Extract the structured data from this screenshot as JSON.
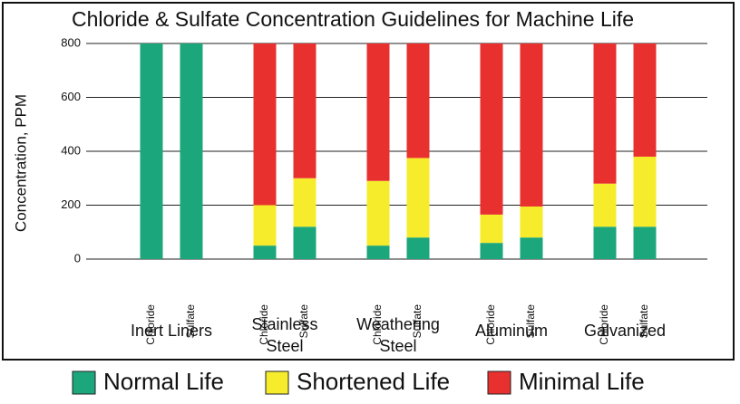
{
  "chart_data": {
    "type": "stacked_bar",
    "title": "Chloride & Sulfate Concentration Guidelines for Machine Life",
    "y_label": "Concentration, PPM",
    "categories": [
      "Chloride",
      "Sulfate",
      "Chloride",
      "Sulfate",
      "Chloride",
      "Sulfate",
      "Chloride",
      "Sulfate",
      "Chloride",
      "Sulfate"
    ],
    "groups": [
      [
        "Inert Liners"
      ],
      [
        "Stainless",
        "Steel"
      ],
      [
        "Weathering",
        "Steel"
      ],
      [
        "Aluminum"
      ],
      [
        "Galvanized"
      ]
    ],
    "series": [
      {
        "name": "Normal Life",
        "color": "#1ca67b",
        "values": [
          800,
          800,
          50,
          120,
          50,
          80,
          60,
          80,
          120,
          120
        ]
      },
      {
        "name": "Shortened Life",
        "color": "#f6ec2c",
        "values": [
          0,
          0,
          150,
          180,
          240,
          295,
          105,
          115,
          160,
          260
        ]
      },
      {
        "name": "Minimal Life",
        "color": "#e8302f",
        "values": [
          0,
          0,
          600,
          500,
          510,
          425,
          635,
          605,
          520,
          420
        ]
      }
    ],
    "ylim": [
      0,
      800
    ],
    "yticks": [
      0,
      200,
      400,
      600,
      800
    ],
    "grid": true
  }
}
